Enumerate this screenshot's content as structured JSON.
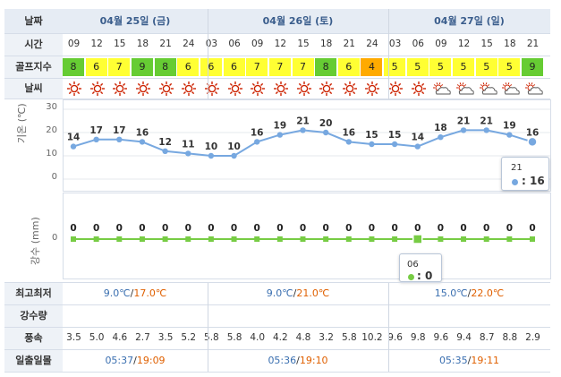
{
  "labels": {
    "date": "날짜",
    "time": "시간",
    "golf_index": "골프지수",
    "weather": "날씨",
    "hilo": "최고최저",
    "precip": "강수량",
    "wind": "풍속",
    "sun": "일출일몰",
    "temp_axis": "기온 (℃)",
    "precip_axis": "강수 (mm)"
  },
  "days": [
    {
      "label": "04월 25일 (금)",
      "hilo_low": "9.0℃",
      "hilo_high": "17.0℃",
      "sunrise": "05:37",
      "sunset": "19:09"
    },
    {
      "label": "04월 26일 (토)",
      "hilo_low": "9.0℃",
      "hilo_high": "21.0℃",
      "sunrise": "05:36",
      "sunset": "19:10"
    },
    {
      "label": "04월 27일 (일)",
      "hilo_low": "15.0℃",
      "hilo_high": "22.0℃",
      "sunrise": "05:35",
      "sunset": "19:11"
    }
  ],
  "hours": [
    "09",
    "12",
    "15",
    "18",
    "21",
    "24",
    "03",
    "06",
    "09",
    "12",
    "15",
    "18",
    "21",
    "24",
    "03",
    "06",
    "09",
    "12",
    "15",
    "18",
    "21"
  ],
  "golf_index": [
    "8",
    "6",
    "7",
    "9",
    "8",
    "6",
    "6",
    "6",
    "7",
    "7",
    "7",
    "8",
    "6",
    "4",
    "5",
    "5",
    "5",
    "5",
    "5",
    "5",
    "9"
  ],
  "weather": [
    "sun",
    "sun",
    "sun",
    "sun",
    "sun",
    "sun",
    "sun",
    "sun",
    "sun",
    "sun",
    "sun",
    "sun",
    "sun",
    "sun",
    "sun",
    "sun",
    "partly-cloudy",
    "partly-cloudy",
    "partly-cloudy",
    "partly-cloudy",
    "partly-cloudy"
  ],
  "wind": [
    "3.5",
    "5.0",
    "4.6",
    "2.7",
    "3.5",
    "5.2",
    "5.8",
    "5.8",
    "4.0",
    "4.2",
    "4.8",
    "3.2",
    "5.8",
    "10.2",
    "9.6",
    "9.8",
    "9.6",
    "9.4",
    "8.7",
    "8.8",
    "2.9"
  ],
  "colors": {
    "golf_green": "#66cc33",
    "golf_yellow": "#ffff33",
    "golf_orange": "#ffaa00",
    "temp_line": "#77a8e0",
    "precip_line": "#77cc44",
    "day_text": "#3a5d8c",
    "high_text": "#e06000",
    "low_text": "#3a6fb0"
  },
  "chart_data": [
    {
      "type": "line",
      "ylabel": "기온 (℃)",
      "ylim": [
        0,
        30
      ],
      "yticks": [
        "0",
        "10",
        "20",
        "30"
      ],
      "x": [
        "09",
        "12",
        "15",
        "18",
        "21",
        "24",
        "03",
        "06",
        "09",
        "12",
        "15",
        "18",
        "21",
        "24",
        "03",
        "06",
        "09",
        "12",
        "15",
        "18",
        "21"
      ],
      "values": [
        14,
        17,
        17,
        16,
        12,
        11,
        10,
        10,
        16,
        19,
        21,
        20,
        16,
        15,
        15,
        14,
        18,
        21,
        21,
        19,
        16
      ],
      "data_labels": [
        "14",
        "17",
        "17",
        "16",
        "12",
        "11",
        "10",
        "10",
        "16",
        "19",
        "21",
        "20",
        "16",
        "15",
        "15",
        "14",
        "18",
        "21",
        "21",
        "19",
        "16"
      ],
      "tooltip": {
        "time": "21",
        "value": ": 16"
      }
    },
    {
      "type": "line",
      "ylabel": "강수 (mm)",
      "yticks": [
        "0"
      ],
      "x": [
        "09",
        "12",
        "15",
        "18",
        "21",
        "24",
        "03",
        "06",
        "09",
        "12",
        "15",
        "18",
        "21",
        "24",
        "03",
        "06",
        "09",
        "12",
        "15",
        "18",
        "21"
      ],
      "values": [
        0,
        0,
        0,
        0,
        0,
        0,
        0,
        0,
        0,
        0,
        0,
        0,
        0,
        0,
        0,
        0,
        0,
        0,
        0,
        0,
        0
      ],
      "data_labels": [
        "0",
        "0",
        "0",
        "0",
        "0",
        "0",
        "0",
        "0",
        "0",
        "0",
        "0",
        "0",
        "0",
        "0",
        "0",
        "0",
        "0",
        "0",
        "0",
        "0",
        "0"
      ],
      "tooltip": {
        "time": "06",
        "value": ": 0"
      }
    }
  ]
}
